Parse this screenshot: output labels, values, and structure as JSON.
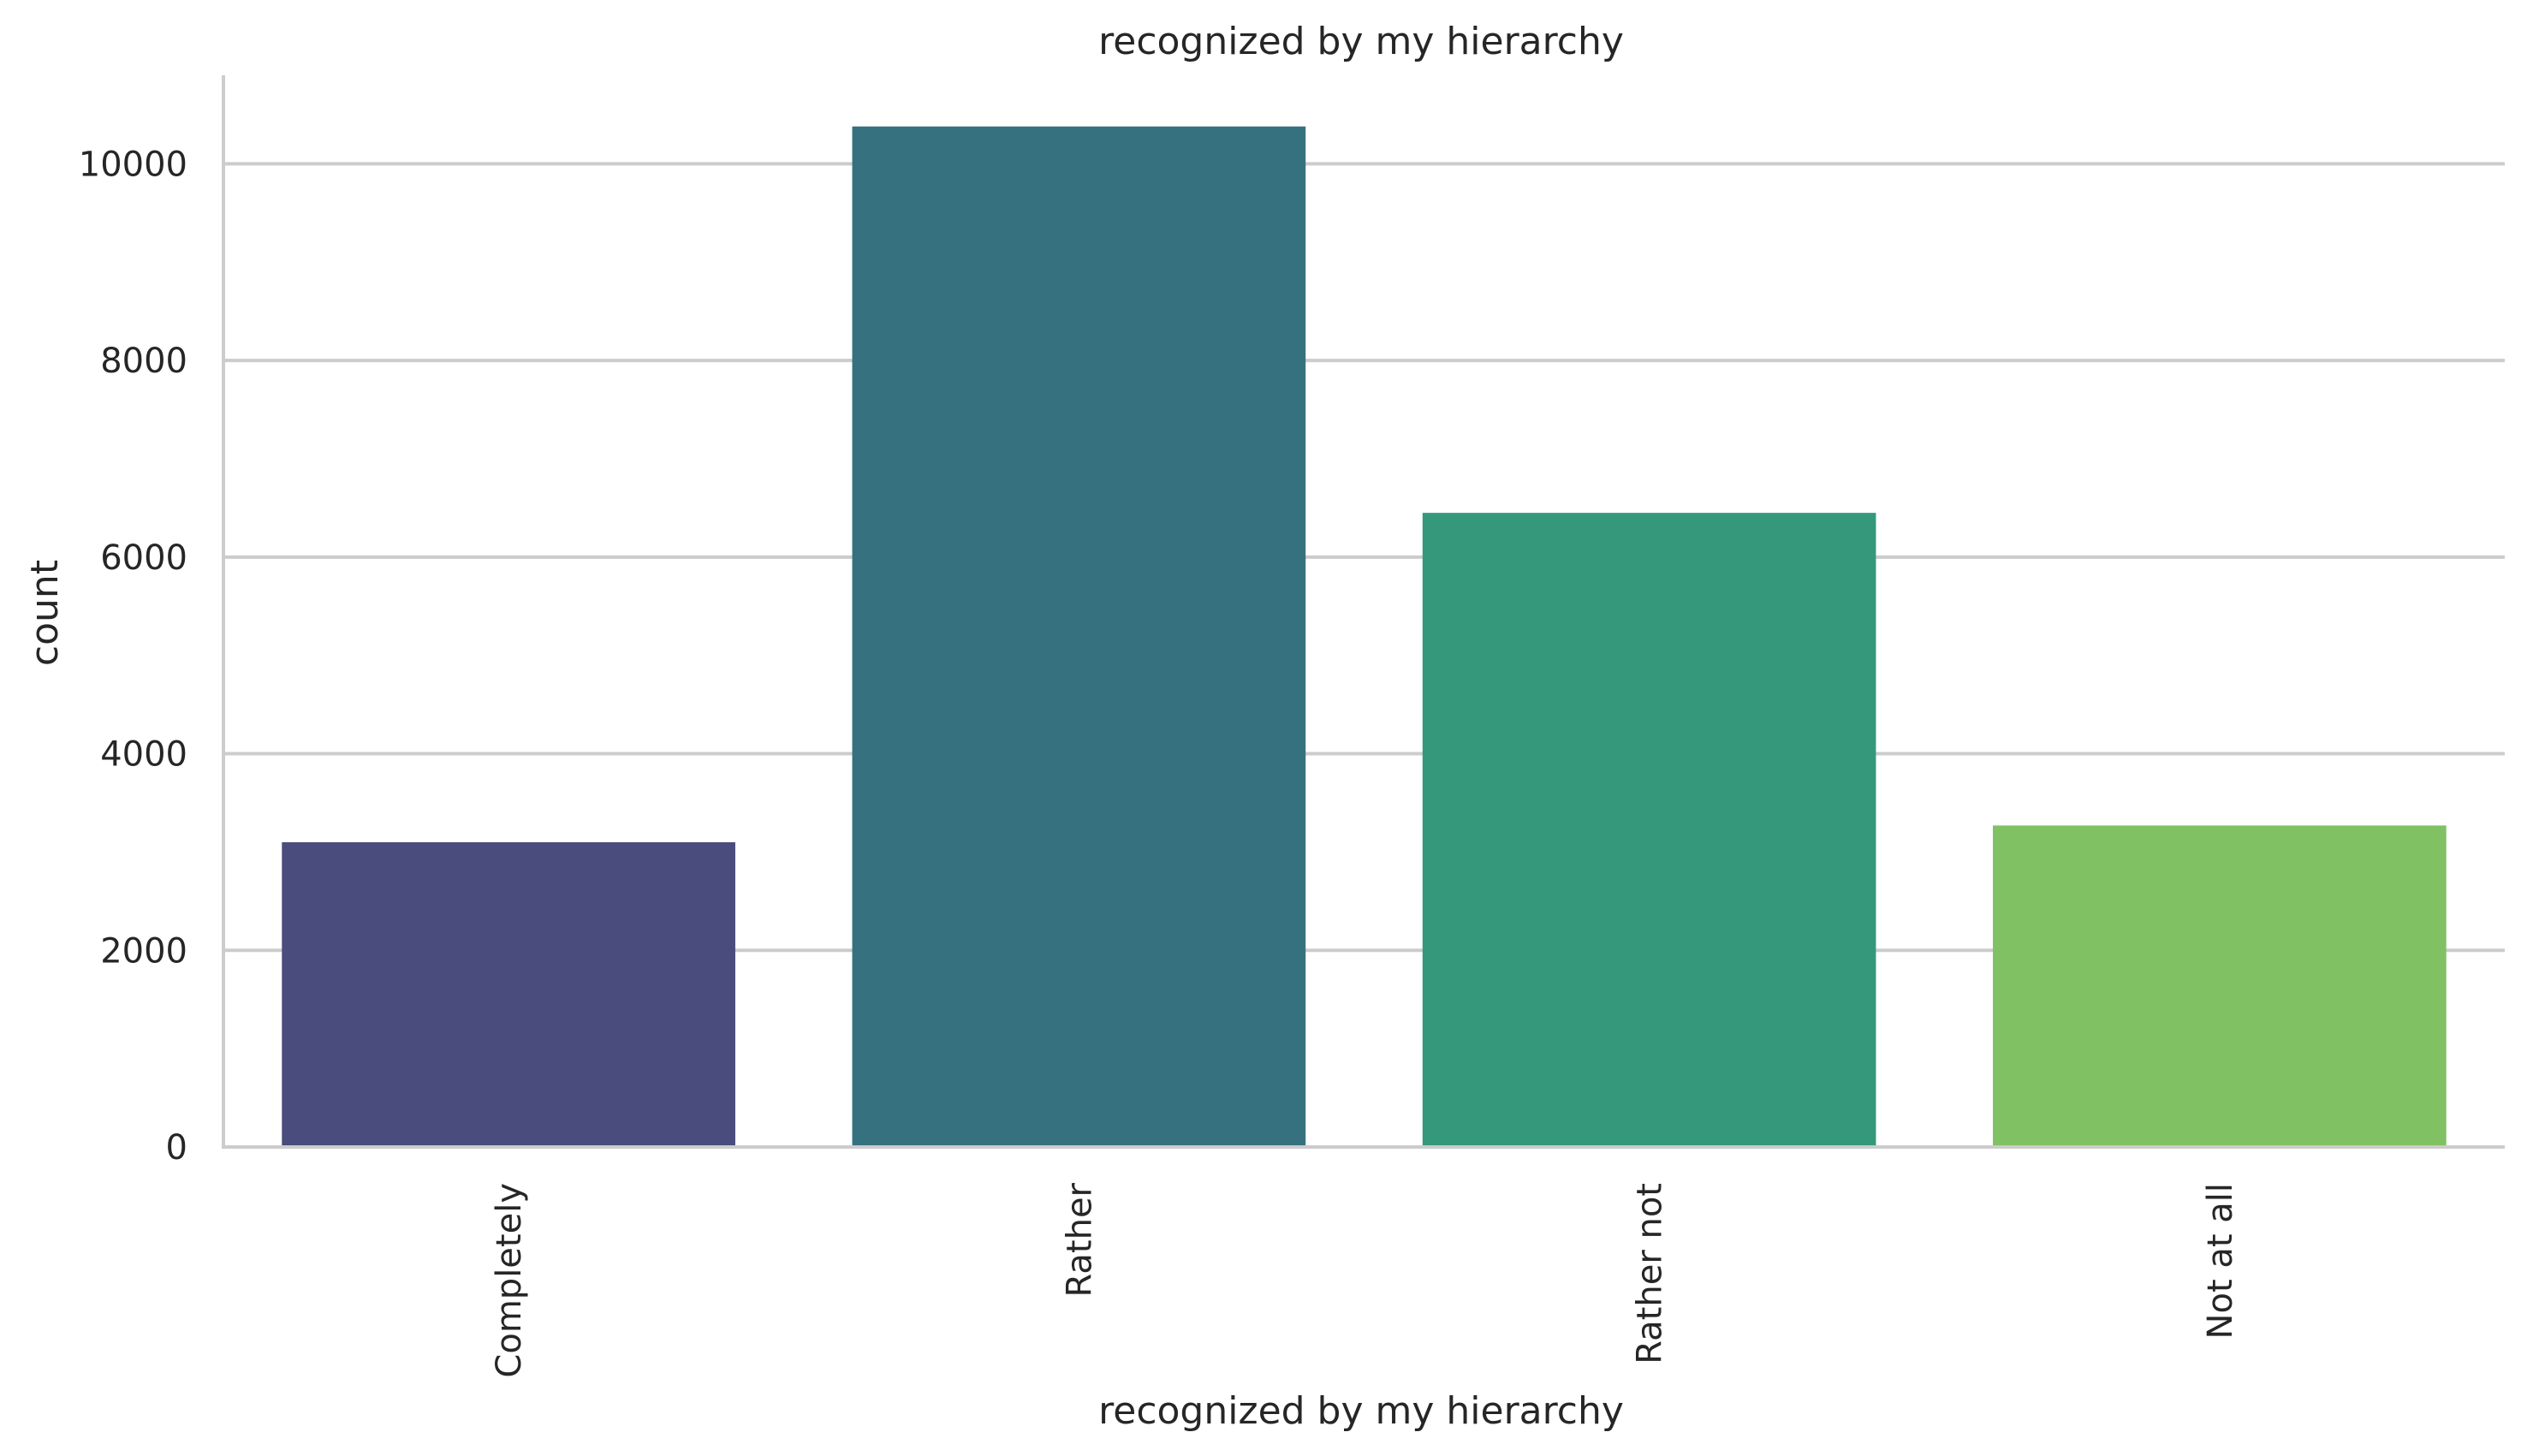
{
  "chart_data": {
    "type": "bar",
    "title": "recognized by my hierarchy",
    "xlabel": "recognized by my hierarchy",
    "ylabel": "count",
    "categories": [
      "Completely",
      "Rather",
      "Rather not",
      "Not at all"
    ],
    "values": [
      3100,
      10380,
      6450,
      3270
    ],
    "colors": [
      "#4a4c7d",
      "#36717f",
      "#35987b",
      "#80c164"
    ],
    "ylim": [
      0,
      10900
    ],
    "yticks": [
      0,
      2000,
      4000,
      6000,
      8000,
      10000
    ],
    "grid": true,
    "x_tick_rotation": "vertical"
  }
}
